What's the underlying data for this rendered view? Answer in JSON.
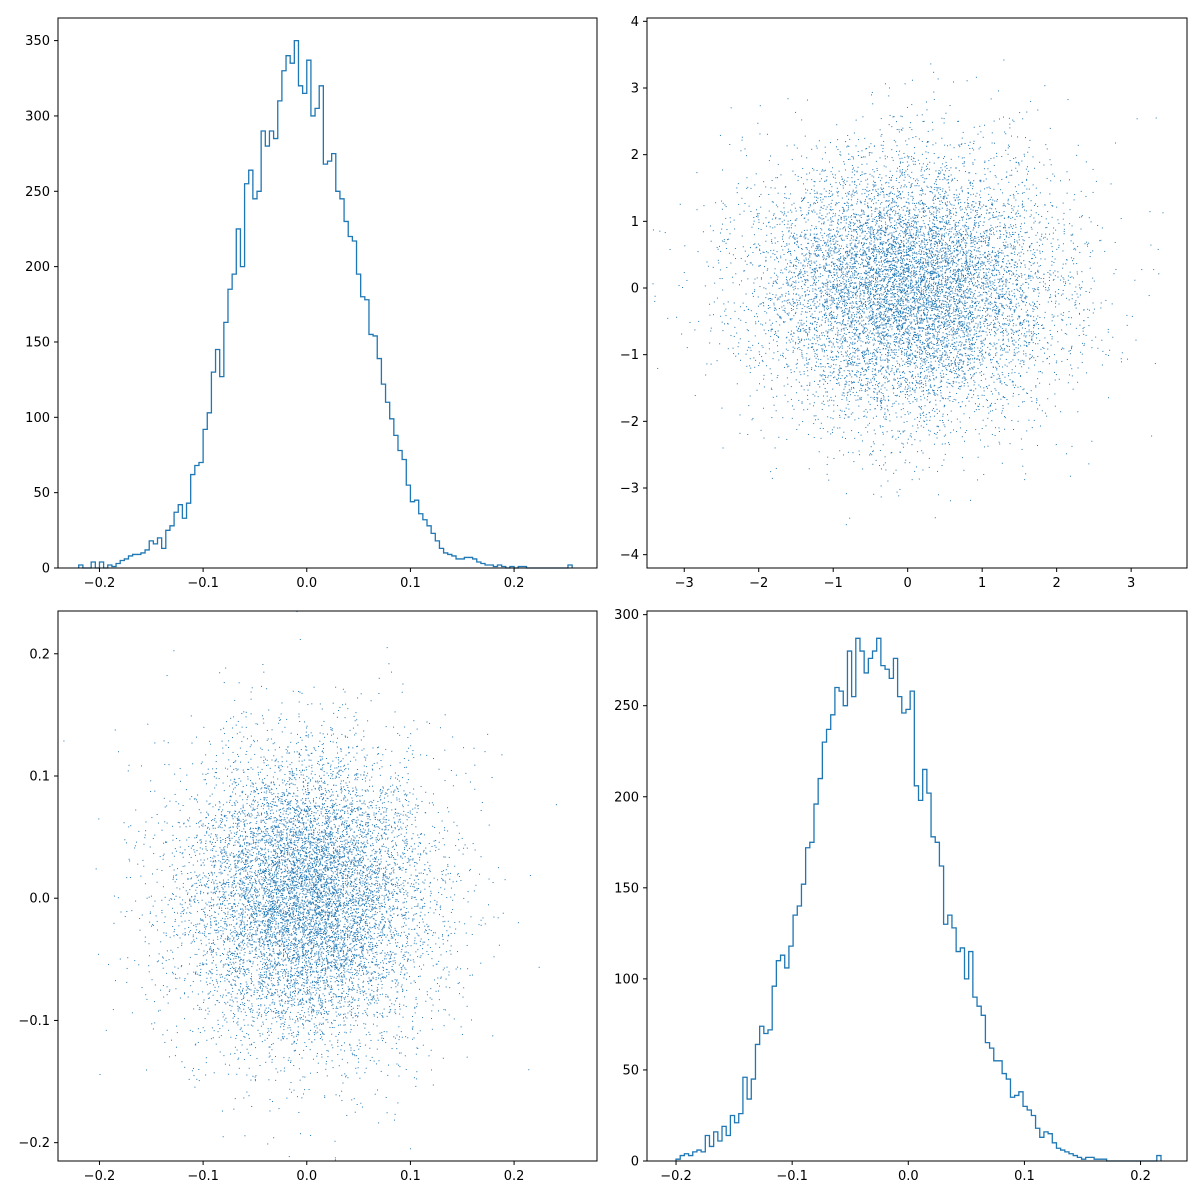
{
  "colors": {
    "series": "#1f77b4",
    "axis": "#000000",
    "background": "#ffffff"
  },
  "chart_data": [
    {
      "type": "histogram",
      "histtype": "step",
      "xlim": [
        -0.24,
        0.28
      ],
      "ylim": [
        0,
        365
      ],
      "xticks": [
        -0.2,
        -0.1,
        0.0,
        0.1,
        0.2
      ],
      "yticks": [
        0,
        50,
        100,
        150,
        200,
        250,
        300,
        350
      ],
      "xtick_labels": [
        "−0.2",
        "−0.1",
        "0.0",
        "0.1",
        "0.2"
      ],
      "ytick_labels": [
        "0",
        "50",
        "100",
        "150",
        "200",
        "250",
        "300",
        "350"
      ],
      "bin_start": -0.22,
      "bin_width": 0.004,
      "counts": [
        2,
        0,
        0,
        4,
        0,
        4,
        0,
        2,
        1,
        3,
        5,
        6,
        8,
        9,
        9,
        10,
        12,
        18,
        16,
        20,
        13,
        25,
        28,
        37,
        42,
        33,
        43,
        62,
        68,
        70,
        92,
        103,
        130,
        145,
        127,
        163,
        185,
        195,
        225,
        200,
        255,
        264,
        245,
        250,
        290,
        280,
        290,
        285,
        310,
        330,
        340,
        335,
        350,
        320,
        315,
        337,
        300,
        305,
        320,
        268,
        270,
        275,
        250,
        245,
        230,
        220,
        217,
        195,
        180,
        178,
        155,
        154,
        139,
        122,
        110,
        99,
        88,
        78,
        72,
        55,
        44,
        45,
        36,
        32,
        28,
        23,
        18,
        13,
        10,
        9,
        8,
        6,
        6,
        7,
        7,
        6,
        4,
        3,
        2,
        2,
        1,
        2,
        1,
        0,
        1,
        0,
        1,
        1,
        0,
        0,
        0,
        0,
        0,
        0,
        0,
        0,
        0,
        0,
        2
      ]
    },
    {
      "type": "scatter",
      "marker": "pixel",
      "xlim": [
        -3.5,
        3.75
      ],
      "ylim": [
        -4.2,
        4.05
      ],
      "xticks": [
        -3,
        -2,
        -1,
        0,
        1,
        2,
        3
      ],
      "yticks": [
        -4,
        -3,
        -2,
        -1,
        0,
        1,
        2,
        3,
        4
      ],
      "xtick_labels": [
        "−3",
        "−2",
        "−1",
        "0",
        "1",
        "2",
        "3"
      ],
      "ytick_labels": [
        "−4",
        "−3",
        "−2",
        "−1",
        "0",
        "1",
        "2",
        "3",
        "4"
      ],
      "n_points": 10000,
      "distribution": {
        "x": {
          "mean": 0,
          "std": 1
        },
        "y": {
          "mean": 0,
          "std": 1
        }
      }
    },
    {
      "type": "scatter",
      "marker": "pixel",
      "xlim": [
        -0.24,
        0.28
      ],
      "ylim": [
        -0.215,
        0.235
      ],
      "xticks": [
        -0.2,
        -0.1,
        0.0,
        0.1,
        0.2
      ],
      "yticks": [
        -0.2,
        -0.1,
        0.0,
        0.1,
        0.2
      ],
      "xtick_labels": [
        "−0.2",
        "−0.1",
        "0.0",
        "0.1",
        "0.2"
      ],
      "ytick_labels": [
        "−0.2",
        "−0.1",
        "0.0",
        "0.1",
        "0.2"
      ],
      "n_points": 10000,
      "distribution": {
        "x": {
          "mean": 0,
          "std": 0.06
        },
        "y": {
          "mean": 0,
          "std": 0.06
        }
      }
    },
    {
      "type": "histogram",
      "histtype": "step",
      "xlim": [
        -0.225,
        0.24
      ],
      "ylim": [
        0,
        302
      ],
      "xticks": [
        -0.2,
        -0.1,
        0.0,
        0.1,
        0.2
      ],
      "yticks": [
        0,
        50,
        100,
        150,
        200,
        250,
        300
      ],
      "xtick_labels": [
        "−0.2",
        "−0.1",
        "0.0",
        "0.1",
        "0.2"
      ],
      "ytick_labels": [
        "0",
        "50",
        "100",
        "150",
        "200",
        "250",
        "300"
      ],
      "bin_start": -0.2,
      "bin_width": 0.0036,
      "counts": [
        1,
        3,
        4,
        3,
        5,
        6,
        5,
        14,
        8,
        16,
        11,
        19,
        14,
        25,
        21,
        26,
        46,
        34,
        45,
        64,
        74,
        70,
        72,
        96,
        110,
        113,
        106,
        118,
        135,
        140,
        152,
        172,
        175,
        196,
        210,
        230,
        237,
        245,
        260,
        258,
        250,
        280,
        255,
        287,
        280,
        268,
        276,
        280,
        287,
        272,
        270,
        265,
        276,
        255,
        246,
        248,
        258,
        206,
        198,
        215,
        202,
        178,
        175,
        162,
        130,
        135,
        128,
        115,
        117,
        100,
        115,
        90,
        85,
        80,
        65,
        62,
        55,
        55,
        48,
        45,
        35,
        36,
        38,
        30,
        28,
        25,
        18,
        13,
        16,
        15,
        10,
        7,
        6,
        5,
        4,
        3,
        2,
        1,
        2,
        2,
        1,
        1,
        1,
        0,
        0,
        0,
        0,
        0,
        0,
        0,
        0,
        0,
        0,
        0,
        0,
        3
      ]
    }
  ]
}
